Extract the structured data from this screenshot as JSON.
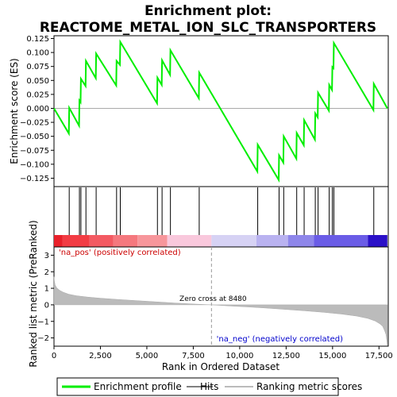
{
  "chart_data": {
    "type": "line",
    "title_line1": "Enrichment plot:",
    "title_line2": "REACTOME_METAL_ION_SLC_TRANSPORTERS",
    "xlabel": "Rank in Ordered Dataset",
    "es_panel": {
      "ylabel": "Enrichment score (ES)",
      "ylim": [
        -0.14,
        0.13
      ],
      "yticks": [
        -0.125,
        -0.1,
        -0.075,
        -0.05,
        -0.025,
        0.0,
        0.025,
        0.05,
        0.075,
        0.1,
        0.125
      ],
      "ytick_labels": [
        "−0.125",
        "−0.100",
        "−0.075",
        "−0.050",
        "−0.025",
        "0.000",
        "0.025",
        "0.050",
        "0.075",
        "0.100",
        "0.125"
      ],
      "series": {
        "name": "Enrichment profile",
        "color": "#00ee00",
        "x": [
          0,
          800,
          820,
          1350,
          1370,
          1430,
          1450,
          1700,
          1720,
          2250,
          2270,
          3350,
          3370,
          3550,
          3570,
          5550,
          5570,
          5800,
          5820,
          6250,
          6270,
          7800,
          7820,
          10950,
          10970,
          12100,
          12120,
          12350,
          12370,
          13050,
          13070,
          13450,
          13470,
          14050,
          14070,
          14200,
          14220,
          14800,
          14820,
          14970,
          14990,
          15050,
          15070,
          17200,
          17220,
          17950
        ],
        "y": [
          0.0,
          -0.045,
          0.001,
          -0.031,
          0.014,
          0.011,
          0.053,
          0.04,
          0.085,
          0.054,
          0.098,
          0.041,
          0.085,
          0.078,
          0.119,
          0.009,
          0.055,
          0.042,
          0.086,
          0.06,
          0.104,
          0.018,
          0.064,
          -0.113,
          -0.065,
          -0.128,
          -0.084,
          -0.097,
          -0.05,
          -0.09,
          -0.044,
          -0.066,
          -0.021,
          -0.056,
          -0.009,
          -0.016,
          0.028,
          -0.004,
          0.042,
          0.033,
          0.074,
          0.072,
          0.117,
          -0.003,
          0.044,
          0.0
        ]
      }
    },
    "hits": {
      "name": "Hits",
      "positions": [
        820,
        1370,
        1450,
        1720,
        2270,
        3370,
        3570,
        5570,
        5820,
        6270,
        7820,
        10970,
        12120,
        12370,
        13070,
        13470,
        14070,
        14220,
        14820,
        14990,
        15070,
        17220
      ]
    },
    "color_bar": {
      "segments": [
        {
          "from": 0,
          "to": 450,
          "color": "#e8202a"
        },
        {
          "from": 450,
          "to": 1900,
          "color": "#f23c44"
        },
        {
          "from": 1900,
          "to": 3200,
          "color": "#f35a62"
        },
        {
          "from": 3200,
          "to": 4500,
          "color": "#f5787e"
        },
        {
          "from": 4500,
          "to": 6100,
          "color": "#f7969b"
        },
        {
          "from": 6100,
          "to": 8480,
          "color": "#f9c8dc"
        },
        {
          "from": 8480,
          "to": 10900,
          "color": "#d6d2f4"
        },
        {
          "from": 10900,
          "to": 12600,
          "color": "#b9b2f0"
        },
        {
          "from": 12600,
          "to": 14000,
          "color": "#8e86ea"
        },
        {
          "from": 14000,
          "to": 16900,
          "color": "#6a5ce6"
        },
        {
          "from": 16900,
          "to": 17950,
          "color": "#2a10c8"
        }
      ]
    },
    "metric_panel": {
      "ylabel": "Ranked list metric (PreRanked)",
      "ylim": [
        -2.5,
        3.5
      ],
      "yticks": [
        -2,
        -1,
        0,
        1,
        2,
        3
      ],
      "ytick_labels": [
        "−2",
        "−1",
        "0",
        "1",
        "2",
        "3"
      ],
      "series": {
        "name": "Ranking metric scores",
        "color": "#bbbbbb",
        "x": [
          0,
          20,
          60,
          150,
          300,
          500,
          800,
          1200,
          1800,
          2500,
          3500,
          4500,
          5500,
          6500,
          7500,
          8480,
          9500,
          10500,
          11500,
          12500,
          13500,
          14500,
          15500,
          16300,
          16900,
          17300,
          17550,
          17700,
          17800,
          17880,
          17930,
          17950
        ],
        "y": [
          1.7,
          1.45,
          1.2,
          1.02,
          0.88,
          0.76,
          0.64,
          0.55,
          0.47,
          0.4,
          0.32,
          0.25,
          0.18,
          0.11,
          0.05,
          0.0,
          -0.07,
          -0.13,
          -0.2,
          -0.28,
          -0.36,
          -0.45,
          -0.56,
          -0.68,
          -0.82,
          -0.98,
          -1.15,
          -1.3,
          -1.55,
          -1.8,
          -2.2,
          -2.45
        ]
      },
      "zero_cross_label": "Zero cross at 8480",
      "zero_cross": 8480,
      "pos_label": "'na_pos' (positively correlated)",
      "neg_label": "'na_neg' (negatively correlated)"
    },
    "xaxis": {
      "xlim": [
        0,
        18000
      ],
      "ticks": [
        0,
        2500,
        5000,
        7500,
        10000,
        12500,
        15000,
        17500
      ],
      "tick_labels": [
        "0",
        "2,500",
        "5,000",
        "7,500",
        "10,000",
        "12,500",
        "15,000",
        "17,500"
      ]
    },
    "legend": {
      "placement": "bottom",
      "items": [
        {
          "label": "Enrichment profile",
          "color": "#00ee00",
          "kind": "line"
        },
        {
          "label": "Hits",
          "color": "#000000",
          "kind": "line"
        },
        {
          "label": "Ranking metric scores",
          "color": "#bbbbbb",
          "kind": "line"
        }
      ]
    }
  }
}
